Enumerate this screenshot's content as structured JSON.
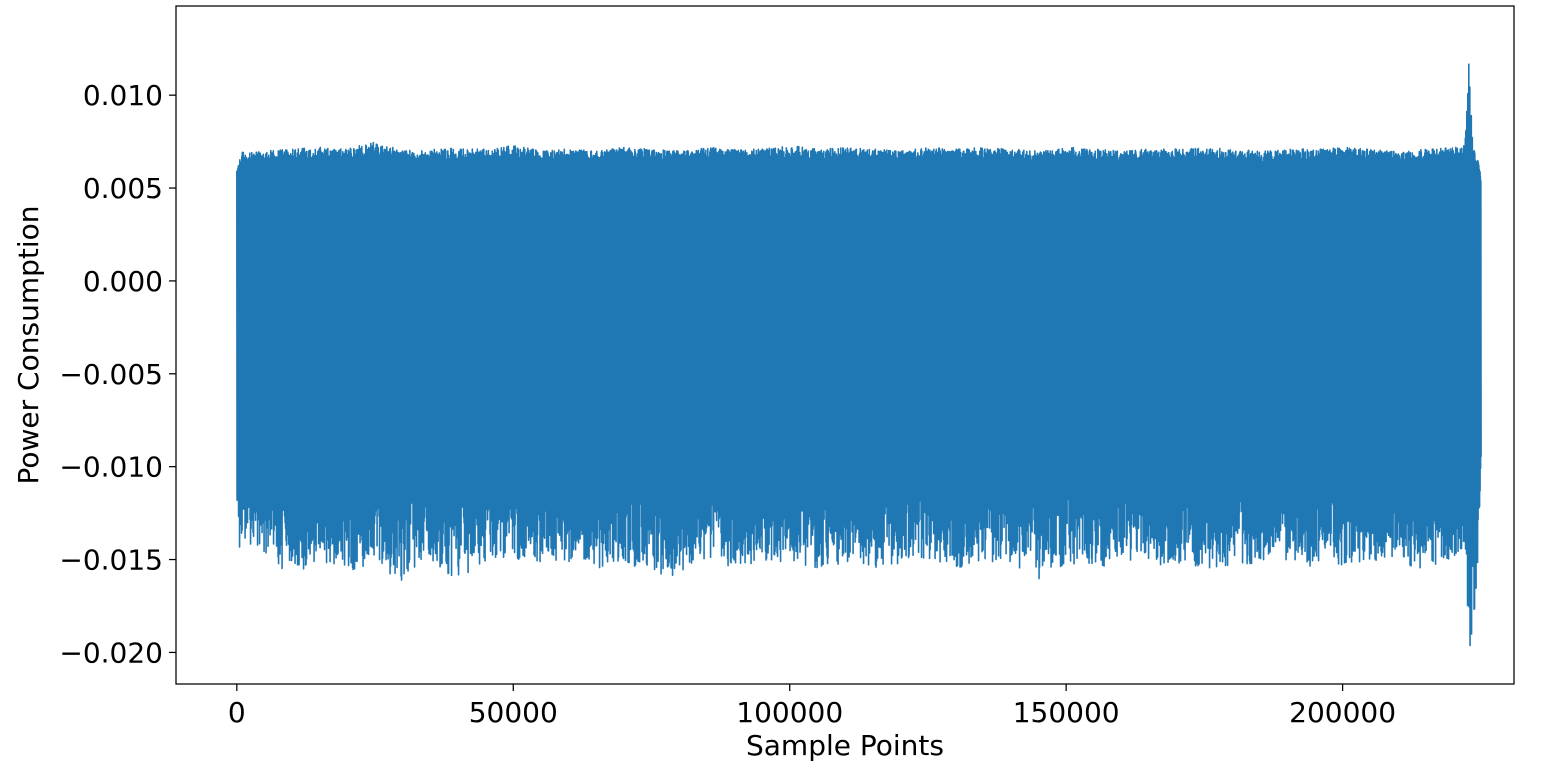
{
  "chart_data": {
    "type": "line",
    "title": "",
    "xlabel": "Sample Points",
    "ylabel": "Power Consumption",
    "xlim": [
      -11000,
      231000
    ],
    "ylim": [
      -0.0217,
      0.0148
    ],
    "grid": false,
    "legend": "none",
    "x_ticks": [
      {
        "value": 0,
        "label": "0"
      },
      {
        "value": 50000,
        "label": "50000"
      },
      {
        "value": 100000,
        "label": "100000"
      },
      {
        "value": 150000,
        "label": "150000"
      },
      {
        "value": 200000,
        "label": "200000"
      }
    ],
    "y_ticks": [
      {
        "value": 0.01,
        "label": "0.010"
      },
      {
        "value": 0.005,
        "label": "0.005"
      },
      {
        "value": 0.0,
        "label": "0.000"
      },
      {
        "value": -0.005,
        "label": "−0.005"
      },
      {
        "value": -0.01,
        "label": "−0.010"
      },
      {
        "value": -0.015,
        "label": "−0.015"
      },
      {
        "value": -0.02,
        "label": "−0.020"
      }
    ],
    "series": [
      {
        "color": "#1f77b4",
        "x_range": [
          0,
          225000
        ],
        "envelope_x": [
          0,
          500,
          1000,
          1500,
          2500,
          5000,
          10000,
          15000,
          20000,
          25000,
          30000,
          35000,
          40000,
          45000,
          50000,
          55000,
          60000,
          65000,
          70000,
          75000,
          80000,
          85000,
          90000,
          95000,
          100000,
          105000,
          110000,
          115000,
          120000,
          125000,
          130000,
          135000,
          140000,
          145000,
          150000,
          155000,
          160000,
          165000,
          170000,
          175000,
          180000,
          185000,
          190000,
          195000,
          200000,
          205000,
          210000,
          215000,
          220000,
          222000,
          223000,
          223500,
          224000,
          224500,
          225000
        ],
        "envelope_max": [
          0.0058,
          0.0065,
          0.0071,
          0.0068,
          0.0069,
          0.007,
          0.0071,
          0.0072,
          0.0071,
          0.0075,
          0.007,
          0.0071,
          0.0072,
          0.0071,
          0.0073,
          0.007,
          0.0071,
          0.007,
          0.0072,
          0.0071,
          0.007,
          0.0072,
          0.0071,
          0.0071,
          0.0073,
          0.0071,
          0.0072,
          0.0071,
          0.007,
          0.0072,
          0.0071,
          0.0072,
          0.0071,
          0.007,
          0.0072,
          0.0071,
          0.007,
          0.0071,
          0.0071,
          0.0072,
          0.0071,
          0.007,
          0.0071,
          0.0071,
          0.0072,
          0.0071,
          0.007,
          0.0071,
          0.0072,
          0.0073,
          0.0131,
          0.0075,
          0.007,
          0.0069,
          0.0049
        ],
        "envelope_min": [
          -0.0127,
          -0.0152,
          -0.0135,
          -0.0139,
          -0.0142,
          -0.0148,
          -0.0159,
          -0.0152,
          -0.0157,
          -0.0153,
          -0.0162,
          -0.015,
          -0.0162,
          -0.0151,
          -0.0149,
          -0.0154,
          -0.0151,
          -0.0155,
          -0.0152,
          -0.0157,
          -0.016,
          -0.015,
          -0.0155,
          -0.0152,
          -0.0151,
          -0.0156,
          -0.0152,
          -0.0155,
          -0.0153,
          -0.015,
          -0.0155,
          -0.0152,
          -0.0154,
          -0.0161,
          -0.0152,
          -0.0156,
          -0.015,
          -0.0154,
          -0.0152,
          -0.0155,
          -0.0153,
          -0.0152,
          -0.0151,
          -0.0154,
          -0.0153,
          -0.015,
          -0.0152,
          -0.0155,
          -0.015,
          -0.0148,
          -0.0201,
          -0.019,
          -0.017,
          -0.0158,
          -0.009
        ]
      }
    ]
  }
}
